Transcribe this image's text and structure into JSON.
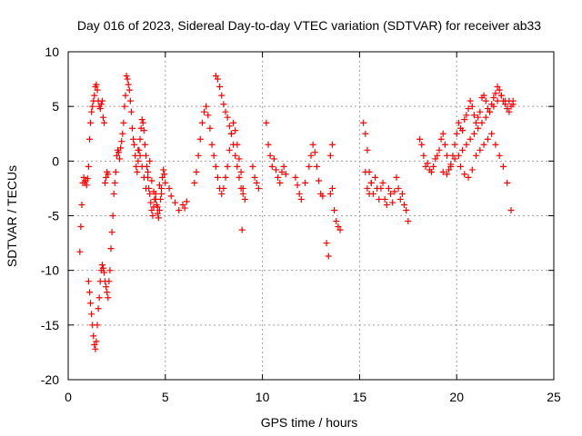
{
  "chart_data": {
    "type": "scatter",
    "title": "Day 016 of 2023, Sidereal Day-to-day VTEC variation (SDTVAR) for receiver ab33",
    "xlabel": "GPS time / hours",
    "ylabel": "SDTVAR / TECUs",
    "xlim": [
      0,
      25
    ],
    "ylim": [
      -20,
      10
    ],
    "x_ticks": [
      0,
      5,
      10,
      15,
      20,
      25
    ],
    "y_ticks": [
      -20,
      -15,
      -10,
      -5,
      0,
      5,
      10
    ],
    "grid": true,
    "legend": "none",
    "marker": "plus",
    "color": "#ff0000",
    "series": [
      {
        "name": "SDTVAR",
        "x": [
          0.6,
          0.65,
          0.7,
          0.75,
          0.8,
          0.85,
          0.9,
          0.95,
          1.0,
          1.05,
          1.1,
          1.15,
          1.2,
          1.25,
          1.3,
          1.35,
          1.4,
          1.45,
          1.5,
          1.55,
          1.6,
          1.65,
          1.7,
          1.75,
          1.8,
          1.85,
          1.9,
          1.95,
          2.0,
          2.05,
          1.05,
          1.1,
          1.15,
          1.2,
          1.25,
          1.3,
          1.35,
          1.4,
          1.45,
          1.5,
          1.55,
          1.6,
          1.65,
          1.7,
          1.75,
          1.8,
          1.85,
          1.9,
          1.95,
          2.0,
          2.05,
          2.1,
          2.15,
          2.2,
          2.25,
          2.3,
          2.35,
          2.4,
          2.45,
          2.5,
          2.55,
          2.6,
          2.65,
          2.7,
          2.75,
          2.8,
          2.85,
          2.9,
          2.95,
          3.0,
          3.05,
          3.1,
          3.15,
          3.2,
          3.25,
          3.3,
          3.35,
          3.4,
          3.45,
          3.5,
          3.55,
          3.6,
          3.65,
          3.7,
          3.75,
          3.8,
          3.85,
          3.9,
          3.95,
          4.0,
          4.05,
          4.1,
          4.15,
          4.2,
          4.25,
          4.3,
          4.35,
          4.4,
          4.45,
          4.5,
          4.55,
          4.6,
          4.65,
          4.7,
          4.75,
          4.8,
          4.85,
          4.9,
          4.95,
          5.0,
          3.6,
          3.7,
          3.8,
          3.9,
          4.0,
          4.1,
          4.2,
          4.3,
          4.4,
          4.5,
          4.6,
          4.7,
          4.8,
          5.2,
          5.3,
          5.5,
          5.7,
          5.9,
          6.0,
          6.1,
          6.5,
          6.6,
          6.7,
          6.8,
          6.9,
          7.0,
          7.1,
          7.2,
          7.3,
          7.4,
          7.5,
          7.6,
          7.7,
          7.8,
          7.9,
          8.0,
          8.1,
          8.2,
          8.3,
          8.4,
          8.5,
          8.6,
          8.7,
          8.8,
          8.9,
          9.0,
          7.6,
          7.7,
          7.8,
          7.9,
          8.0,
          8.1,
          8.2,
          8.3,
          8.4,
          8.5,
          8.6,
          8.7,
          8.8,
          8.9,
          9.0,
          9.1,
          8.95,
          9.5,
          9.6,
          9.7,
          9.8,
          10.2,
          10.3,
          10.4,
          10.5,
          10.6,
          10.7,
          10.8,
          10.9,
          11.0,
          11.1,
          11.2,
          11.7,
          11.8,
          11.9,
          12.0,
          12.2,
          12.4,
          12.5,
          12.6,
          12.7,
          12.8,
          12.9,
          13.0,
          13.1,
          13.3,
          13.4,
          13.5,
          13.6,
          13.7,
          13.8,
          13.9,
          14.0,
          13.5,
          13.6,
          15.2,
          15.3,
          15.4,
          15.5,
          15.6,
          15.7,
          15.8,
          15.9,
          16.0,
          16.1,
          16.2,
          16.3,
          16.4,
          16.5,
          16.6,
          16.7,
          16.8,
          16.9,
          17.0,
          17.1,
          17.2,
          17.3,
          17.4,
          17.5,
          15.3,
          15.4,
          15.5,
          15.6,
          18.1,
          18.2,
          18.3,
          18.4,
          18.5,
          18.6,
          18.7,
          18.8,
          18.9,
          19.0,
          19.1,
          19.2,
          19.3,
          19.4,
          19.5,
          19.6,
          19.7,
          19.8,
          19.9,
          20.0,
          20.1,
          20.2,
          20.3,
          20.4,
          20.5,
          20.6,
          20.7,
          20.8,
          20.9,
          21.0,
          21.1,
          21.2,
          21.3,
          21.4,
          21.5,
          21.6,
          21.7,
          21.8,
          21.9,
          22.0,
          22.1,
          22.2,
          22.3,
          22.4,
          22.5,
          22.6,
          22.7,
          22.8,
          22.9,
          19.3,
          19.5,
          19.7,
          19.9,
          20.1,
          20.3,
          20.5,
          20.7,
          20.9,
          21.1,
          21.3,
          21.5,
          21.7,
          21.9,
          22.1,
          22.3,
          22.5,
          22.7,
          22.9,
          20.2,
          20.4,
          20.6,
          20.8,
          21.0,
          21.2,
          21.4,
          21.6,
          21.8,
          22.0,
          22.2,
          22.4,
          22.6,
          22.8
        ],
        "y": [
          -8.3,
          -6,
          -4,
          -2,
          -1.5,
          -2,
          -1.8,
          -2.2,
          -1.6,
          -0.5,
          2,
          3.5,
          4.5,
          5,
          5.5,
          6,
          6.8,
          7,
          6.5,
          5.5,
          5,
          4.8,
          5.2,
          5.5,
          4,
          3.5,
          -2,
          -1.5,
          -1,
          -1.2,
          -11,
          -12,
          -13,
          -14,
          -15,
          -16,
          -16.8,
          -17.2,
          -16.5,
          -15,
          -13.5,
          -12.5,
          -11,
          -10,
          -9.5,
          -9.8,
          -10.2,
          -11,
          -11.5,
          -12,
          -12.5,
          -11,
          -10,
          -8,
          -6.5,
          -5,
          -3,
          -2,
          -1,
          0.5,
          1,
          0.8,
          0.2,
          1.2,
          1.8,
          2.5,
          3.5,
          5,
          6,
          7.8,
          7.5,
          7,
          6.5,
          5.5,
          4.5,
          3,
          2,
          1.5,
          0.5,
          -0.5,
          -1,
          0,
          1,
          2,
          3,
          3.8,
          3.5,
          2.8,
          1.5,
          0.5,
          -0.5,
          -1.5,
          -2.5,
          -3,
          -3.8,
          -4.5,
          -5,
          -4.2,
          -3.5,
          -3,
          -4,
          -4.8,
          -5.2,
          -4.5,
          -3.5,
          -2.5,
          -1.5,
          -0.8,
          -1.2,
          -2,
          1,
          0.5,
          -0.5,
          -1.5,
          -2.5,
          -1,
          0,
          -1.8,
          -2.8,
          -3.5,
          -4.2,
          -2.2,
          -3,
          -2.5,
          -3.2,
          -3.8,
          -4.5,
          -4,
          -4.3,
          -3.7,
          -2,
          -1,
          0.5,
          2,
          3.5,
          4.5,
          5,
          4.2,
          3,
          1.5,
          0.5,
          -0.5,
          -1.5,
          -2.5,
          -3,
          -2.5,
          -1.5,
          -0.5,
          1,
          2.5,
          3.5,
          2.8,
          1.5,
          0.2,
          -1,
          -2.5,
          7.8,
          7.5,
          6.8,
          6,
          5.2,
          4.5,
          4,
          3.2,
          2.5,
          1.5,
          0.5,
          -0.5,
          -1.5,
          -2.5,
          -3,
          -3.5,
          -6.3,
          -0.5,
          -1.5,
          -2,
          -2.5,
          3.5,
          1.5,
          0.5,
          -0.5,
          0.2,
          -0.8,
          -1.5,
          -2,
          -1,
          -0.5,
          -1.2,
          -1.5,
          -2.2,
          -3,
          -3.5,
          -2,
          -0.5,
          0.5,
          1.5,
          0.8,
          -0.5,
          -1.8,
          -3,
          -3.2,
          -7.5,
          -8.7,
          0.5,
          1.5,
          -4.5,
          -5.5,
          -6,
          -6.3,
          -3,
          -2.5,
          3.5,
          2.5,
          1,
          -1,
          -2,
          -3,
          -1.5,
          -2.5,
          -3.5,
          -2.5,
          -2,
          -3.5,
          -4,
          -2.5,
          -3,
          -3.8,
          -2.8,
          -1.5,
          -2.5,
          -3.5,
          -3,
          -4,
          -4.5,
          -5.5,
          -1,
          -2.5,
          -3,
          -2,
          2,
          1.5,
          0.5,
          -0.5,
          -0.2,
          -0.8,
          -1,
          -0.5,
          0.2,
          0.5,
          1,
          2,
          2.5,
          1.5,
          0.5,
          -0.8,
          -0.3,
          0.5,
          1.5,
          2.5,
          3.5,
          3,
          2.8,
          3.8,
          4.2,
          4.8,
          5.5,
          5,
          4.2,
          3.5,
          4,
          4.5,
          5.8,
          6,
          5.5,
          4.8,
          4.5,
          5.2,
          5.8,
          6.2,
          6.8,
          6.5,
          6,
          5.5,
          5.2,
          4.8,
          4.5,
          5,
          5.5,
          -1,
          -1.2,
          -0.5,
          0.2,
          0.5,
          1,
          1.5,
          2,
          2.5,
          3,
          3.5,
          4,
          4.5,
          5,
          5.5,
          6,
          5.5,
          5.5,
          5.2,
          -0.5,
          -1.2,
          -1.5,
          -0.8,
          0.5,
          1,
          1.5,
          2,
          2.5,
          1.5,
          0.5,
          -0.5,
          -2,
          -4.5
        ]
      }
    ]
  }
}
